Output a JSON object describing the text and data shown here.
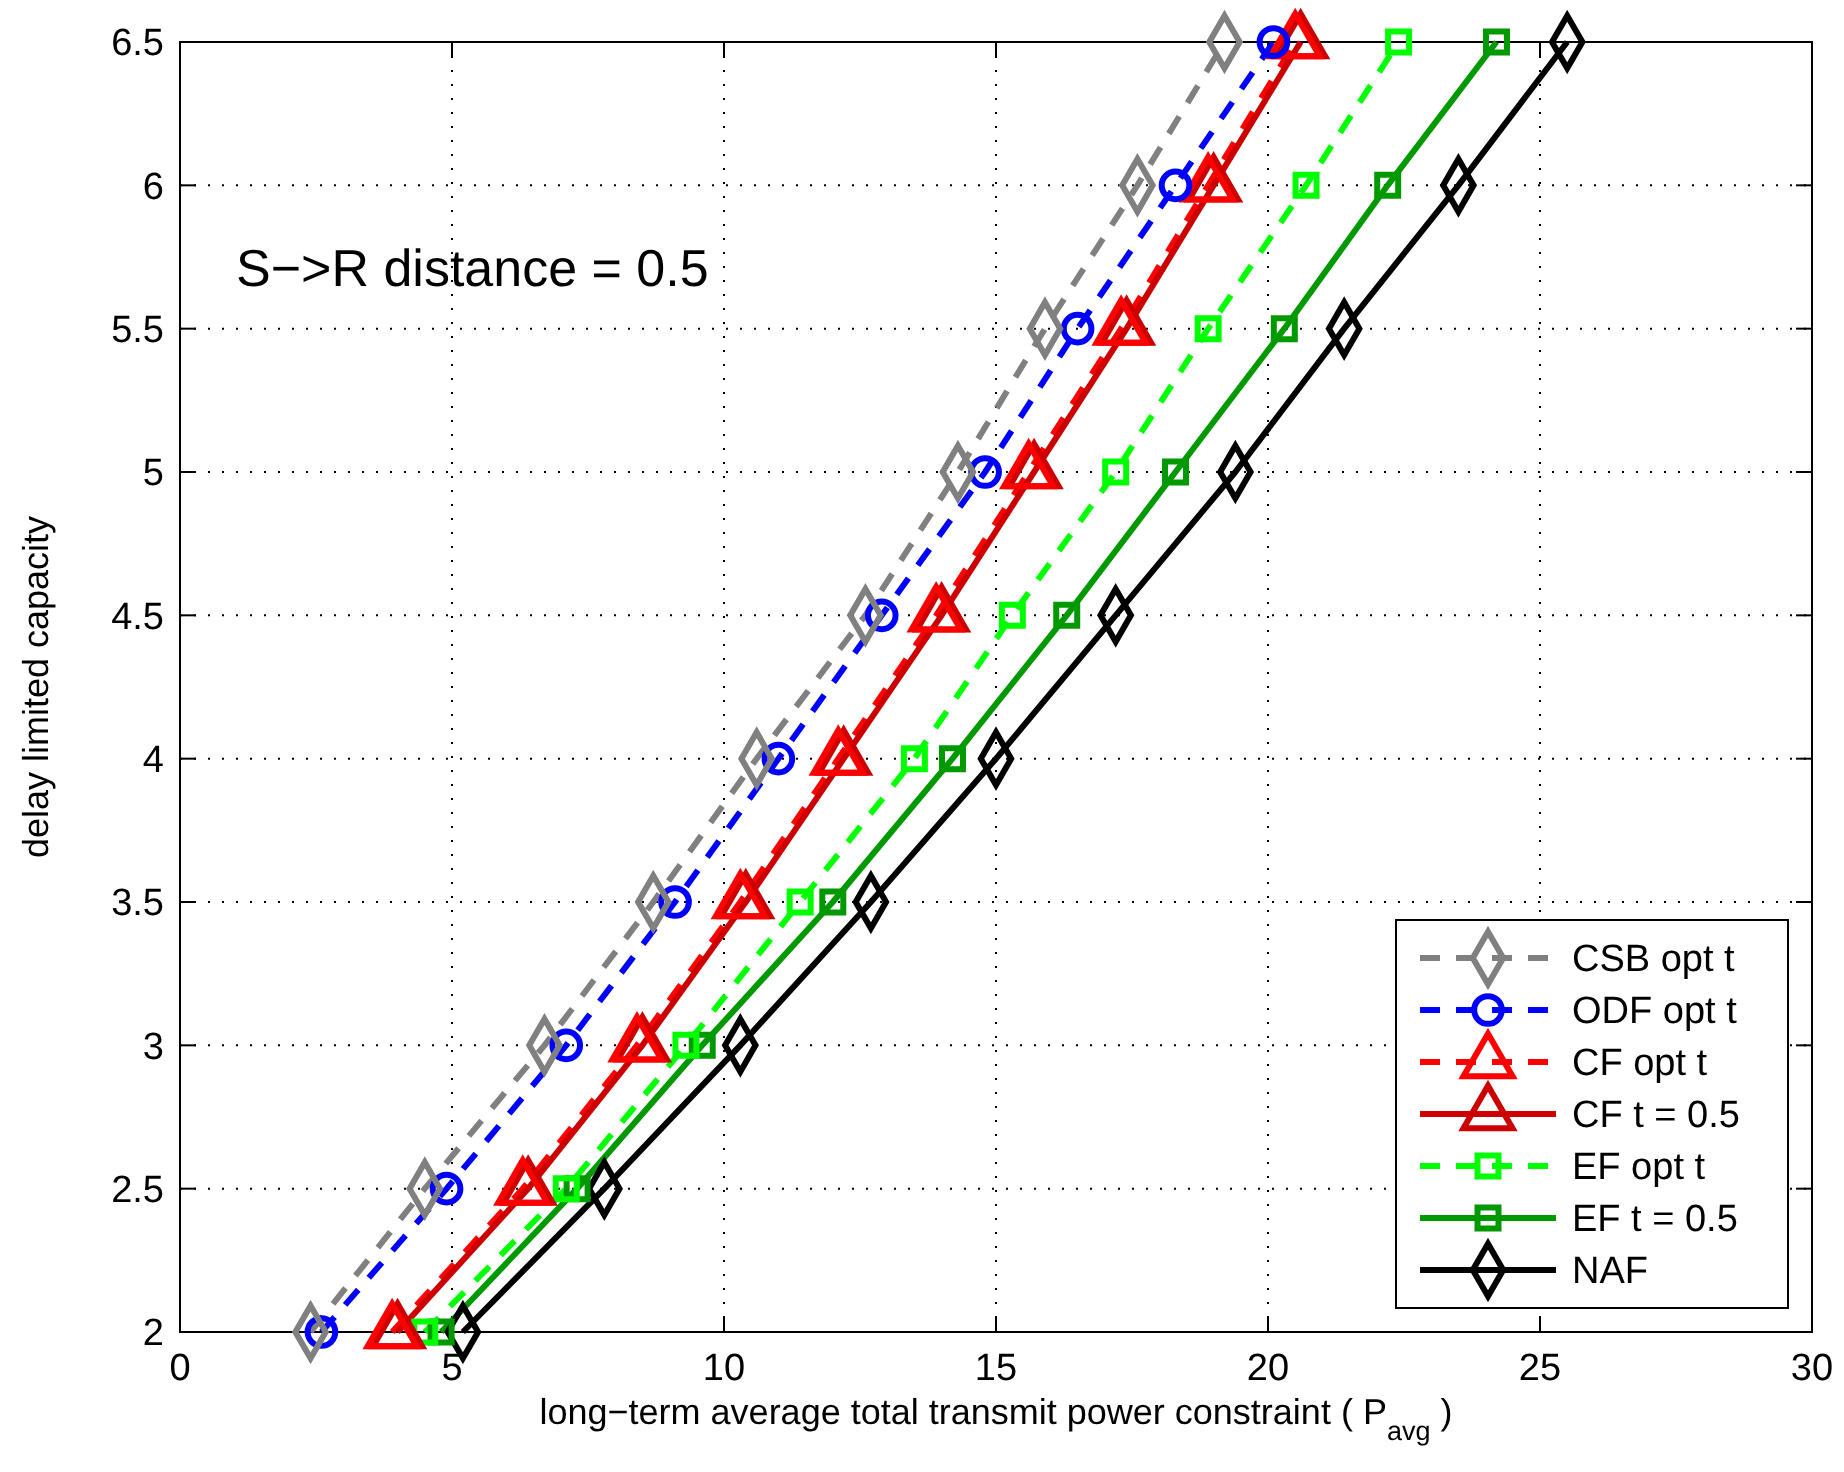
{
  "chart_data": {
    "type": "line",
    "xlabel": "long−term average total transmit power constraint ( P$_{avg}$ )",
    "ylabel": "delay limited capacity",
    "annotations": [
      "S−>R distance = 0.5"
    ],
    "xlim": [
      0,
      30
    ],
    "xticks": [
      0,
      5,
      10,
      15,
      20,
      25,
      30
    ],
    "ylim": [
      2,
      6.5
    ],
    "yticks": [
      2,
      2.5,
      3,
      3.5,
      4,
      4.5,
      5,
      5.5,
      6,
      6.5
    ],
    "grid": true,
    "legend": "bottom right",
    "series": [
      {
        "name": "CSB opt t",
        "color": "#808080",
        "marker": "diamond",
        "line_style": "dashed",
        "x": [
          2.4,
          4.5,
          6.7,
          8.7,
          10.6,
          12.6,
          14.3,
          15.9,
          17.6,
          19.2
        ],
        "values": [
          2,
          2.5,
          3,
          3.5,
          4,
          4.5,
          5,
          5.5,
          6,
          6.5
        ]
      },
      {
        "name": "ODF opt t",
        "color": "#0000ff",
        "marker": "circle",
        "line_style": "dashed",
        "x": [
          2.6,
          4.9,
          7.1,
          9.1,
          11.0,
          12.9,
          14.8,
          16.5,
          18.3,
          20.1
        ],
        "values": [
          2,
          2.5,
          3,
          3.5,
          4,
          4.5,
          5,
          5.5,
          6,
          6.5
        ]
      },
      {
        "name": "CF opt t",
        "color": "#ff0000",
        "marker": "triangle",
        "line_style": "dashed",
        "x": [
          3.9,
          6.3,
          8.4,
          10.3,
          12.1,
          13.9,
          15.6,
          17.3,
          18.9,
          20.5
        ],
        "values": [
          2,
          2.5,
          3,
          3.5,
          4,
          4.5,
          5,
          5.5,
          6,
          6.5
        ]
      },
      {
        "name": "CF t = 0.5",
        "color": "#cc0000",
        "marker": "triangle",
        "line_style": "solid",
        "x": [
          4.0,
          6.4,
          8.5,
          10.4,
          12.2,
          14.0,
          15.7,
          17.4,
          19.0,
          20.6
        ],
        "values": [
          2,
          2.5,
          3,
          3.5,
          4,
          4.5,
          5,
          5.5,
          6,
          6.5
        ]
      },
      {
        "name": "EF opt t",
        "color": "#00ff00",
        "marker": "square",
        "line_style": "dashed",
        "x": [
          4.5,
          7.1,
          9.3,
          11.4,
          13.5,
          15.3,
          17.2,
          18.9,
          20.7,
          22.4
        ],
        "values": [
          2,
          2.5,
          3,
          3.5,
          4,
          4.5,
          5,
          5.5,
          6,
          6.5
        ]
      },
      {
        "name": "EF t = 0.5",
        "color": "#009900",
        "marker": "square",
        "line_style": "solid",
        "x": [
          4.8,
          7.3,
          9.6,
          12.0,
          14.2,
          16.3,
          18.3,
          20.3,
          22.2,
          24.2
        ],
        "values": [
          2,
          2.5,
          3,
          3.5,
          4,
          4.5,
          5,
          5.5,
          6,
          6.5
        ]
      },
      {
        "name": "NAF",
        "color": "#000000",
        "marker": "diamond",
        "line_style": "solid",
        "x": [
          5.2,
          7.8,
          10.3,
          12.7,
          15.0,
          17.2,
          19.4,
          21.4,
          23.5,
          25.5
        ],
        "values": [
          2,
          2.5,
          3,
          3.5,
          4,
          4.5,
          5,
          5.5,
          6,
          6.5
        ]
      }
    ]
  }
}
